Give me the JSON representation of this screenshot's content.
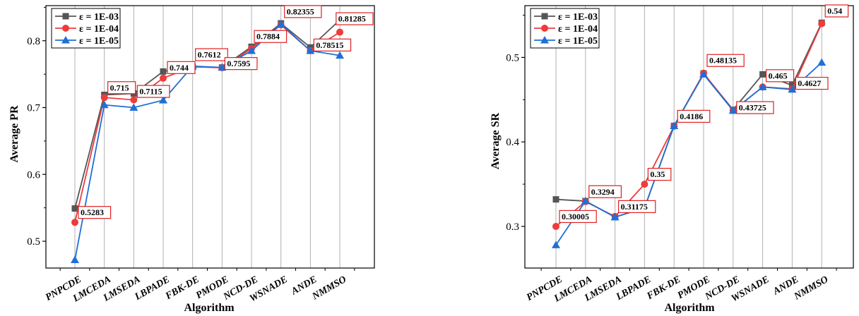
{
  "colors": {
    "eps3": "#555555",
    "eps4": "#ee3b3b",
    "eps5": "#1f6fd6",
    "annotation_box": "#e02020",
    "grid": "#b0b0b0"
  },
  "chart_data": [
    {
      "type": "line",
      "xlabel": "Algorithm",
      "ylabel": "Average PR",
      "categories": [
        "PNPCDE",
        "LMCEDA",
        "LMSEDA",
        "LBPADE",
        "FBK-DE",
        "PMODE",
        "NCD-DE",
        "WSNADE",
        "ANDE",
        "NMMSO"
      ],
      "ylim": [
        0.45,
        0.85
      ],
      "yticks": [
        "0.5",
        "0.6",
        "0.7",
        "0.8"
      ],
      "legend_position": "top-left",
      "grid": "vertical",
      "series": [
        {
          "name": "ε = 1E-03",
          "marker": "square",
          "values": [
            0.549,
            0.719,
            0.721,
            0.754,
            0.761,
            0.76,
            0.791,
            0.826,
            0.79,
            0.831
          ]
        },
        {
          "name": "ε = 1E-04",
          "marker": "circle",
          "values": [
            0.5283,
            0.715,
            0.7115,
            0.744,
            0.7612,
            0.7595,
            0.7884,
            0.82355,
            0.78515,
            0.81285
          ]
        },
        {
          "name": "ε = 1E-05",
          "marker": "triangle",
          "values": [
            0.472,
            0.704,
            0.7,
            0.711,
            0.762,
            0.76,
            0.785,
            0.825,
            0.785,
            0.778
          ]
        }
      ],
      "annotations": [
        "0.5283",
        "0.715",
        "0.7115",
        "0.744",
        "0.7612",
        "0.7595",
        "0.7884",
        "0.82355",
        "0.78515",
        "0.81285"
      ]
    },
    {
      "type": "line",
      "xlabel": "Algorithm",
      "ylabel": "Average SR",
      "categories": [
        "PNPCDE",
        "LMCEDA",
        "LMSEDA",
        "LBPADE",
        "FBK-DE",
        "PMODE",
        "NCD-DE",
        "WSNADE",
        "ANDE",
        "NMMSO"
      ],
      "ylim": [
        0.25,
        0.56
      ],
      "yticks": [
        "0.3",
        "0.4",
        "0.5"
      ],
      "legend_position": "top-left",
      "grid": "vertical",
      "series": [
        {
          "name": "ε = 1E-03",
          "marker": "square",
          "values": [
            0.332,
            0.33,
            0.311,
            0.322,
            0.419,
            0.481,
            0.438,
            0.48,
            0.467,
            0.541
          ]
        },
        {
          "name": "ε = 1E-04",
          "marker": "circle",
          "values": [
            0.30005,
            0.3294,
            0.31175,
            0.35,
            0.4186,
            0.48135,
            0.43725,
            0.465,
            0.4627,
            0.54
          ]
        },
        {
          "name": "ε = 1E-05",
          "marker": "triangle",
          "values": [
            0.278,
            0.33,
            0.311,
            0.322,
            0.419,
            0.48,
            0.437,
            0.465,
            0.462,
            0.494
          ]
        }
      ],
      "annotations": [
        "0.30005",
        "0.3294",
        "0.31175",
        "0.35",
        "0.4186",
        "0.48135",
        "0.43725",
        "0.465",
        "0.4627",
        "0.54"
      ]
    }
  ]
}
